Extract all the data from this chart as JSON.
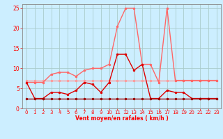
{
  "x": [
    0,
    1,
    2,
    3,
    4,
    5,
    6,
    7,
    8,
    9,
    10,
    11,
    12,
    13,
    14,
    15,
    16,
    17,
    18,
    19,
    20,
    21,
    22,
    23
  ],
  "series1_color": "#ff9999",
  "series2_color": "#ff6666",
  "series3_color": "#dd0000",
  "series4_color": "#990000",
  "series1": [
    7,
    7,
    7,
    7,
    7,
    7,
    7,
    7,
    7,
    7,
    7,
    7,
    7,
    7,
    7,
    7,
    7,
    7,
    7,
    7,
    7,
    7,
    7,
    7
  ],
  "series2": [
    6.5,
    6.5,
    6.5,
    8.5,
    9,
    9,
    8,
    9.5,
    10,
    10,
    11,
    20.5,
    25,
    25,
    11,
    11,
    6.5,
    25,
    7,
    7,
    7,
    7,
    7,
    7
  ],
  "series3": [
    6.5,
    2.5,
    2.5,
    4,
    4,
    3.5,
    4.5,
    6.5,
    6,
    4,
    6.5,
    13.5,
    13.5,
    9.5,
    11,
    2.5,
    2.5,
    4.5,
    4,
    4,
    2.5,
    2.5,
    2.5,
    2.5
  ],
  "series4": [
    2.5,
    2.5,
    2.5,
    2.5,
    2.5,
    2.5,
    2.5,
    2.5,
    2.5,
    2.5,
    2.5,
    2.5,
    2.5,
    2.5,
    2.5,
    2.5,
    2.5,
    2.5,
    2.5,
    2.5,
    2.5,
    2.5,
    2.5,
    2.5
  ],
  "bg_color": "#cceeff",
  "grid_color": "#aacccc",
  "xlabel": "Vent moyen/en rafales ( km/h )",
  "xlim": [
    -0.5,
    23.5
  ],
  "ylim": [
    0,
    26
  ],
  "yticks": [
    0,
    5,
    10,
    15,
    20,
    25
  ],
  "xticks": [
    0,
    1,
    2,
    3,
    4,
    5,
    6,
    7,
    8,
    9,
    10,
    11,
    12,
    13,
    14,
    15,
    16,
    17,
    18,
    19,
    20,
    21,
    22,
    23
  ],
  "marker_size": 2.5,
  "line_width": 1.0
}
